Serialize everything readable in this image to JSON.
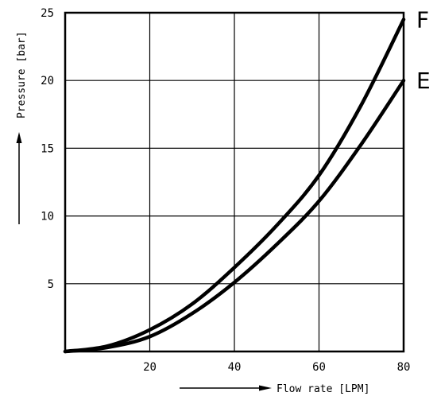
{
  "chart_data": {
    "type": "line",
    "xlabel": "Flow rate [LPM]",
    "ylabel": "Pressure [bar]",
    "xlim": [
      0,
      80
    ],
    "ylim": [
      0,
      25
    ],
    "x_ticks": [
      "20",
      "40",
      "60",
      "80"
    ],
    "y_ticks": [
      "5",
      "10",
      "15",
      "20",
      "25"
    ],
    "grid": true,
    "series": [
      {
        "name": "F",
        "x": [
          0,
          10,
          20,
          30,
          40,
          50,
          60,
          70,
          80
        ],
        "y": [
          0,
          0.4,
          1.6,
          3.5,
          6.2,
          9.3,
          13.0,
          18.2,
          24.5
        ]
      },
      {
        "name": "E",
        "x": [
          0,
          10,
          20,
          30,
          40,
          50,
          60,
          70,
          80
        ],
        "y": [
          0,
          0.3,
          1.1,
          2.8,
          5.1,
          7.9,
          11.1,
          15.3,
          20.0
        ]
      }
    ]
  }
}
